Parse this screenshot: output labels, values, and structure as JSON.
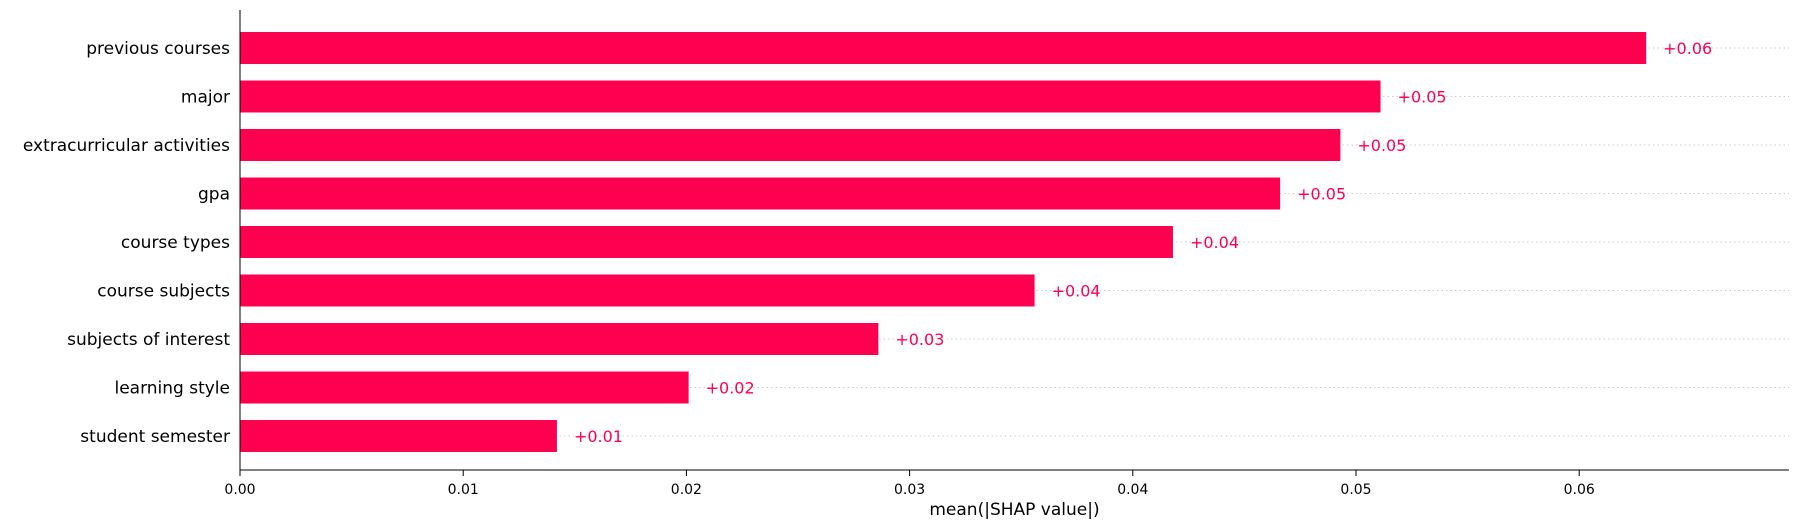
{
  "chart_data": {
    "type": "bar",
    "orientation": "horizontal",
    "title": "",
    "xlabel": "mean(|SHAP value|)",
    "ylabel": "",
    "categories": [
      "previous courses",
      "major",
      "extracurricular activities",
      "gpa",
      "course types",
      "course subjects",
      "subjects of interest",
      "learning style",
      "student semester"
    ],
    "values": [
      0.063,
      0.0511,
      0.0493,
      0.0466,
      0.0418,
      0.0356,
      0.0286,
      0.0201,
      0.0142
    ],
    "value_labels": [
      "+0.06",
      "+0.05",
      "+0.05",
      "+0.05",
      "+0.04",
      "+0.04",
      "+0.03",
      "+0.02",
      "+0.01"
    ],
    "xlim": [
      0,
      0.0694
    ],
    "xticks": [
      0.0,
      0.01,
      0.02,
      0.03,
      0.04,
      0.05,
      0.06
    ],
    "xtick_labels": [
      "0.00",
      "0.01",
      "0.02",
      "0.03",
      "0.04",
      "0.05",
      "0.06"
    ],
    "grid": "dotted row guides",
    "legend": "none",
    "colors": {
      "bar": "#ff0051",
      "value_label": "#ff0051",
      "axis": "#000000",
      "guide": "#cccccc"
    }
  }
}
